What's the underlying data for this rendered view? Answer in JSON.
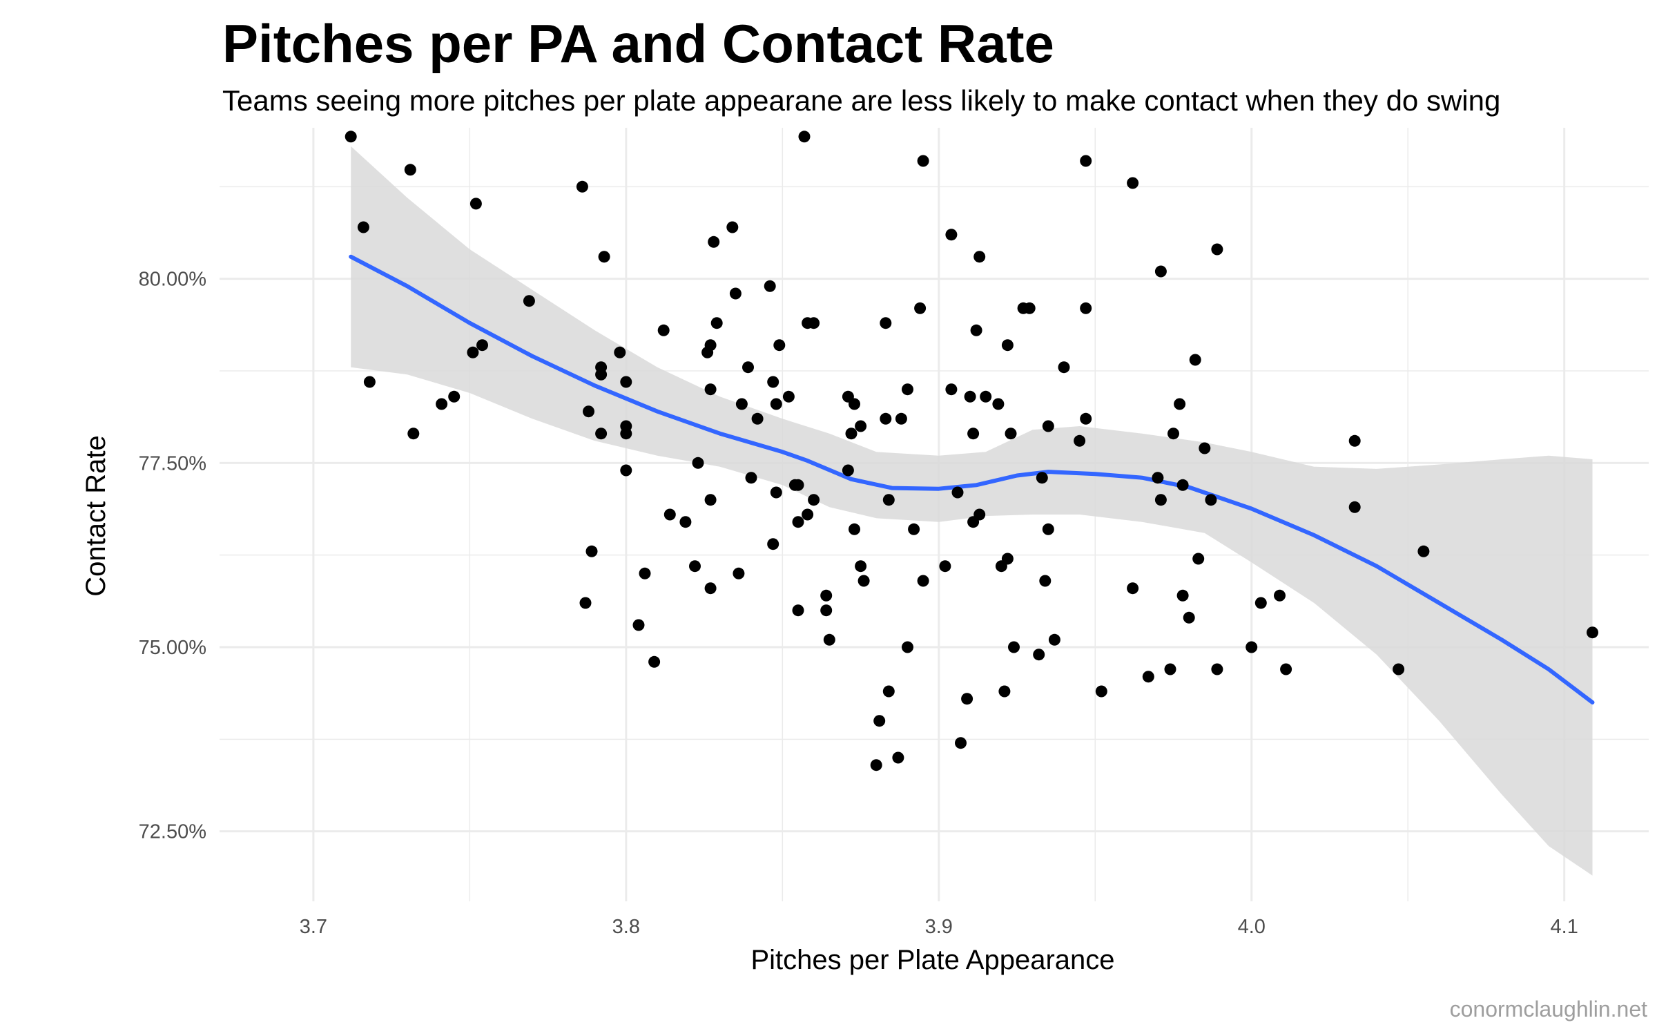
{
  "chart_data": {
    "type": "scatter",
    "title": "Pitches per PA and Contact Rate",
    "subtitle": "Teams seeing more pitches per plate appearane are less likely to make contact when they do swing",
    "xlabel": "Pitches per Plate Appearance",
    "ylabel": "Contact Rate",
    "caption": "conormclaughlin.net",
    "xlim": [
      3.67,
      4.127
    ],
    "ylim": [
      0.7155,
      0.8205
    ],
    "x_ticks": [
      3.7,
      3.8,
      3.9,
      4.0,
      4.1
    ],
    "x_tick_labels": [
      "3.7",
      "3.8",
      "3.9",
      "4.0",
      "4.1"
    ],
    "y_ticks": [
      0.725,
      0.75,
      0.775,
      0.8
    ],
    "y_tick_labels": [
      "72.50%",
      "75.00%",
      "77.50%",
      "80.00%"
    ],
    "grid": true,
    "colors": {
      "points": "#000000",
      "smooth_line": "#3366ff",
      "confidence_band": "#d9d9d9",
      "grid": "#ebebeb"
    },
    "points": [
      [
        3.712,
        0.8193
      ],
      [
        3.716,
        0.807
      ],
      [
        3.718,
        0.786
      ],
      [
        3.731,
        0.8148
      ],
      [
        3.732,
        0.779
      ],
      [
        3.741,
        0.783
      ],
      [
        3.745,
        0.784
      ],
      [
        3.752,
        0.8102
      ],
      [
        3.751,
        0.79
      ],
      [
        3.754,
        0.791
      ],
      [
        3.769,
        0.797
      ],
      [
        3.786,
        0.8125
      ],
      [
        3.787,
        0.756
      ],
      [
        3.788,
        0.782
      ],
      [
        3.789,
        0.763
      ],
      [
        3.792,
        0.788
      ],
      [
        3.792,
        0.787
      ],
      [
        3.792,
        0.779
      ],
      [
        3.793,
        0.803
      ],
      [
        3.798,
        0.79
      ],
      [
        3.8,
        0.786
      ],
      [
        3.8,
        0.78
      ],
      [
        3.8,
        0.779
      ],
      [
        3.8,
        0.774
      ],
      [
        3.804,
        0.753
      ],
      [
        3.806,
        0.76
      ],
      [
        3.809,
        0.748
      ],
      [
        3.812,
        0.793
      ],
      [
        3.814,
        0.768
      ],
      [
        3.819,
        0.767
      ],
      [
        3.822,
        0.761
      ],
      [
        3.823,
        0.775
      ],
      [
        3.826,
        0.79
      ],
      [
        3.827,
        0.791
      ],
      [
        3.827,
        0.785
      ],
      [
        3.827,
        0.77
      ],
      [
        3.827,
        0.758
      ],
      [
        3.828,
        0.805
      ],
      [
        3.829,
        0.794
      ],
      [
        3.834,
        0.807
      ],
      [
        3.835,
        0.798
      ],
      [
        3.836,
        0.76
      ],
      [
        3.837,
        0.783
      ],
      [
        3.839,
        0.788
      ],
      [
        3.84,
        0.773
      ],
      [
        3.842,
        0.781
      ],
      [
        3.846,
        0.799
      ],
      [
        3.847,
        0.764
      ],
      [
        3.847,
        0.786
      ],
      [
        3.848,
        0.771
      ],
      [
        3.848,
        0.783
      ],
      [
        3.849,
        0.791
      ],
      [
        3.852,
        0.784
      ],
      [
        3.854,
        0.772
      ],
      [
        3.855,
        0.772
      ],
      [
        3.855,
        0.755
      ],
      [
        3.855,
        0.767
      ],
      [
        3.857,
        0.8193
      ],
      [
        3.858,
        0.794
      ],
      [
        3.858,
        0.768
      ],
      [
        3.86,
        0.794
      ],
      [
        3.86,
        0.77
      ],
      [
        3.864,
        0.757
      ],
      [
        3.864,
        0.755
      ],
      [
        3.865,
        0.751
      ],
      [
        3.871,
        0.784
      ],
      [
        3.871,
        0.774
      ],
      [
        3.872,
        0.779
      ],
      [
        3.873,
        0.783
      ],
      [
        3.873,
        0.766
      ],
      [
        3.875,
        0.78
      ],
      [
        3.875,
        0.761
      ],
      [
        3.876,
        0.759
      ],
      [
        3.88,
        0.734
      ],
      [
        3.881,
        0.74
      ],
      [
        3.883,
        0.794
      ],
      [
        3.883,
        0.781
      ],
      [
        3.884,
        0.744
      ],
      [
        3.884,
        0.77
      ],
      [
        3.887,
        0.735
      ],
      [
        3.888,
        0.781
      ],
      [
        3.89,
        0.785
      ],
      [
        3.89,
        0.75
      ],
      [
        3.892,
        0.766
      ],
      [
        3.894,
        0.796
      ],
      [
        3.895,
        0.816
      ],
      [
        3.895,
        0.759
      ],
      [
        3.902,
        0.761
      ],
      [
        3.904,
        0.806
      ],
      [
        3.904,
        0.785
      ],
      [
        3.906,
        0.771
      ],
      [
        3.907,
        0.737
      ],
      [
        3.909,
        0.743
      ],
      [
        3.91,
        0.784
      ],
      [
        3.911,
        0.767
      ],
      [
        3.911,
        0.779
      ],
      [
        3.912,
        0.793
      ],
      [
        3.913,
        0.803
      ],
      [
        3.913,
        0.768
      ],
      [
        3.915,
        0.784
      ],
      [
        3.919,
        0.783
      ],
      [
        3.92,
        0.761
      ],
      [
        3.921,
        0.744
      ],
      [
        3.922,
        0.791
      ],
      [
        3.922,
        0.762
      ],
      [
        3.923,
        0.779
      ],
      [
        3.924,
        0.75
      ],
      [
        3.927,
        0.796
      ],
      [
        3.929,
        0.796
      ],
      [
        3.932,
        0.749
      ],
      [
        3.933,
        0.773
      ],
      [
        3.934,
        0.759
      ],
      [
        3.935,
        0.766
      ],
      [
        3.935,
        0.78
      ],
      [
        3.937,
        0.751
      ],
      [
        3.94,
        0.788
      ],
      [
        3.945,
        0.778
      ],
      [
        3.947,
        0.816
      ],
      [
        3.947,
        0.796
      ],
      [
        3.947,
        0.781
      ],
      [
        3.952,
        0.744
      ],
      [
        3.962,
        0.813
      ],
      [
        3.962,
        0.758
      ],
      [
        3.967,
        0.746
      ],
      [
        3.97,
        0.773
      ],
      [
        3.971,
        0.801
      ],
      [
        3.971,
        0.77
      ],
      [
        3.974,
        0.747
      ],
      [
        3.975,
        0.779
      ],
      [
        3.977,
        0.783
      ],
      [
        3.978,
        0.772
      ],
      [
        3.978,
        0.757
      ],
      [
        3.98,
        0.754
      ],
      [
        3.982,
        0.789
      ],
      [
        3.983,
        0.762
      ],
      [
        3.985,
        0.777
      ],
      [
        3.987,
        0.77
      ],
      [
        3.989,
        0.804
      ],
      [
        3.989,
        0.747
      ],
      [
        4.0,
        0.75
      ],
      [
        4.003,
        0.756
      ],
      [
        4.009,
        0.757
      ],
      [
        4.011,
        0.747
      ],
      [
        4.033,
        0.778
      ],
      [
        4.033,
        0.769
      ],
      [
        4.047,
        0.747
      ],
      [
        4.055,
        0.763
      ],
      [
        4.109,
        0.752
      ]
    ],
    "smooth_line": [
      [
        3.712,
        0.803
      ],
      [
        3.73,
        0.799
      ],
      [
        3.75,
        0.794
      ],
      [
        3.77,
        0.7895
      ],
      [
        3.79,
        0.7855
      ],
      [
        3.81,
        0.782
      ],
      [
        3.83,
        0.779
      ],
      [
        3.85,
        0.7765
      ],
      [
        3.858,
        0.7753
      ],
      [
        3.872,
        0.7728
      ],
      [
        3.885,
        0.7716
      ],
      [
        3.9,
        0.7715
      ],
      [
        3.912,
        0.772
      ],
      [
        3.925,
        0.7733
      ],
      [
        3.935,
        0.7738
      ],
      [
        3.95,
        0.7735
      ],
      [
        3.965,
        0.773
      ],
      [
        3.98,
        0.7717
      ],
      [
        4.0,
        0.7688
      ],
      [
        4.02,
        0.7652
      ],
      [
        4.04,
        0.761
      ],
      [
        4.06,
        0.756
      ],
      [
        4.08,
        0.751
      ],
      [
        4.095,
        0.747
      ],
      [
        4.109,
        0.7425
      ]
    ],
    "band_upper": [
      [
        3.712,
        0.818
      ],
      [
        3.73,
        0.811
      ],
      [
        3.75,
        0.804
      ],
      [
        3.77,
        0.7985
      ],
      [
        3.79,
        0.793
      ],
      [
        3.81,
        0.788
      ],
      [
        3.83,
        0.784
      ],
      [
        3.85,
        0.781
      ],
      [
        3.865,
        0.779
      ],
      [
        3.88,
        0.7765
      ],
      [
        3.9,
        0.776
      ],
      [
        3.915,
        0.7765
      ],
      [
        3.93,
        0.7795
      ],
      [
        3.945,
        0.78
      ],
      [
        3.965,
        0.779
      ],
      [
        3.985,
        0.7778
      ],
      [
        4.0,
        0.7765
      ],
      [
        4.02,
        0.7745
      ],
      [
        4.04,
        0.7742
      ],
      [
        4.06,
        0.7748
      ],
      [
        4.08,
        0.7755
      ],
      [
        4.095,
        0.776
      ],
      [
        4.109,
        0.7755
      ]
    ],
    "band_lower": [
      [
        3.712,
        0.788
      ],
      [
        3.73,
        0.787
      ],
      [
        3.75,
        0.7845
      ],
      [
        3.77,
        0.781
      ],
      [
        3.79,
        0.778
      ],
      [
        3.81,
        0.776
      ],
      [
        3.83,
        0.7745
      ],
      [
        3.85,
        0.772
      ],
      [
        3.865,
        0.769
      ],
      [
        3.88,
        0.7675
      ],
      [
        3.9,
        0.767
      ],
      [
        3.915,
        0.7678
      ],
      [
        3.93,
        0.768
      ],
      [
        3.945,
        0.768
      ],
      [
        3.965,
        0.767
      ],
      [
        3.985,
        0.7655
      ],
      [
        4.0,
        0.7615
      ],
      [
        4.02,
        0.756
      ],
      [
        4.04,
        0.749
      ],
      [
        4.06,
        0.74
      ],
      [
        4.08,
        0.73
      ],
      [
        4.095,
        0.723
      ],
      [
        4.109,
        0.719
      ]
    ]
  }
}
